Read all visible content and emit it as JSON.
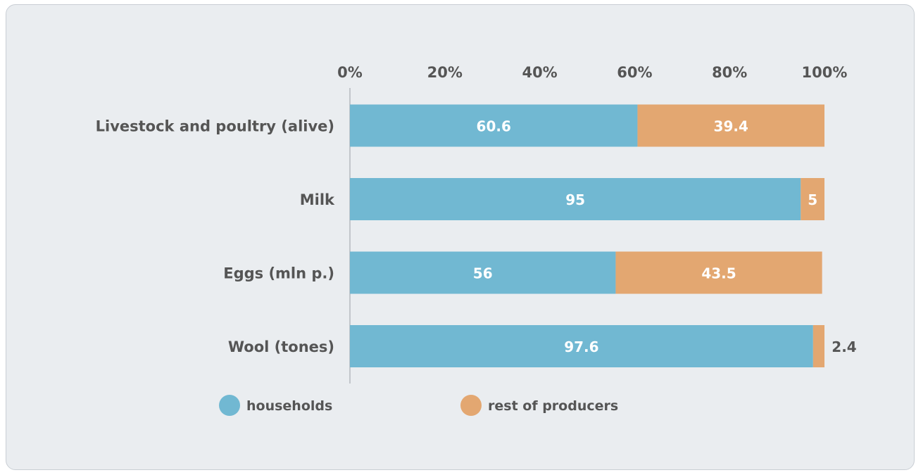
{
  "chart_data": {
    "type": "bar",
    "orientation": "horizontal",
    "stacked": true,
    "categories": [
      "Livestock and poultry (alive)",
      "Milk",
      "Eggs (mln p.)",
      "Wool (tones)"
    ],
    "series": [
      {
        "name": "households",
        "values": [
          60.6,
          95,
          56,
          97.6
        ],
        "color": "#71b8d2",
        "label_color": "#ffffff"
      },
      {
        "name": "rest of producers",
        "values": [
          39.4,
          5,
          43.5,
          2.4
        ],
        "color": "#e3a771",
        "label_color": "#ffffff"
      }
    ],
    "xlim": [
      0,
      100
    ],
    "x_ticks": [
      "0%",
      "20%",
      "40%",
      "60%",
      "80%",
      "100%"
    ],
    "x_axis_position": "top",
    "legend_position": "bottom-left",
    "grid": false
  },
  "colors": {
    "background": "#eaedf0",
    "text": "#555555"
  }
}
